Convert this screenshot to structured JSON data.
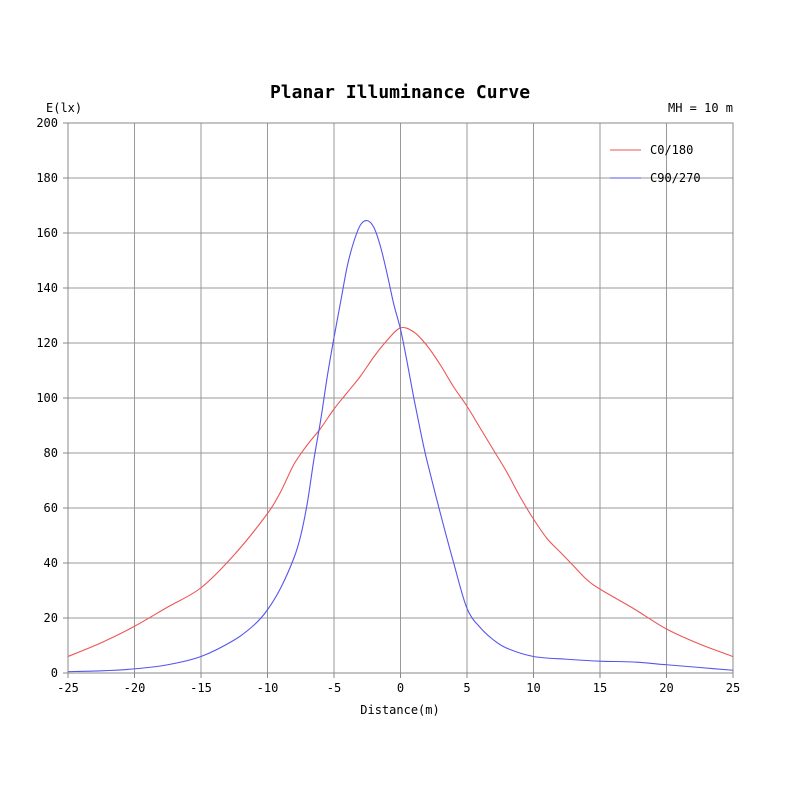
{
  "chart_data": {
    "type": "line",
    "title": "Planar Illuminance Curve",
    "subtitle": "MH = 10 m",
    "xlabel": "Distance(m)",
    "ylabel": "E(lx)",
    "xlim": [
      -25,
      25
    ],
    "ylim": [
      0,
      200
    ],
    "xticks": [
      -25,
      -20,
      -15,
      -10,
      -5,
      0,
      5,
      10,
      15,
      20,
      25
    ],
    "yticks": [
      0,
      20,
      40,
      60,
      80,
      100,
      120,
      140,
      160,
      180,
      200
    ],
    "grid": true,
    "legend_position": "top-right",
    "series": [
      {
        "name": "C0/180",
        "color": "#ee5555",
        "x": [
          -25,
          -22.5,
          -20,
          -17.5,
          -15,
          -12.5,
          -10,
          -9,
          -8,
          -7,
          -6,
          -5,
          -4,
          -3,
          -2,
          -1,
          0,
          1,
          2,
          3,
          4,
          5,
          6,
          7,
          8,
          9,
          10,
          11,
          12,
          13,
          14,
          15,
          17.5,
          20,
          22.5,
          25
        ],
        "values": [
          6,
          11,
          17,
          24,
          31,
          43,
          58,
          66,
          76,
          83,
          89,
          96,
          102,
          108,
          115,
          121,
          125.5,
          124,
          119,
          112,
          104,
          97,
          89,
          81,
          73,
          64,
          56,
          49,
          44,
          39,
          34,
          30.5,
          23.5,
          16,
          10.5,
          6
        ]
      },
      {
        "name": "C90/270",
        "color": "#5555ee",
        "x": [
          -25,
          -22.5,
          -20,
          -17.5,
          -15,
          -12.5,
          -11,
          -10,
          -9,
          -8,
          -7.5,
          -7,
          -6.5,
          -6,
          -5.5,
          -5,
          -4.5,
          -4,
          -3.5,
          -3,
          -2.5,
          -2,
          -1.5,
          -1,
          -0.5,
          0,
          0.5,
          1,
          1.5,
          2,
          3,
          4,
          5,
          6,
          7,
          8,
          10,
          12.5,
          15,
          17.5,
          20,
          22.5,
          25
        ],
        "values": [
          0.5,
          0.8,
          1.5,
          3,
          6,
          12,
          17.5,
          23,
          31,
          42,
          50,
          62,
          78,
          92,
          108,
          122,
          135,
          148,
          157,
          163,
          164.5,
          162,
          155,
          145,
          134,
          125,
          113,
          100,
          88,
          77,
          58,
          40,
          23.5,
          16.5,
          12,
          9,
          6,
          5,
          4.3,
          4,
          3,
          2,
          1
        ]
      }
    ]
  }
}
